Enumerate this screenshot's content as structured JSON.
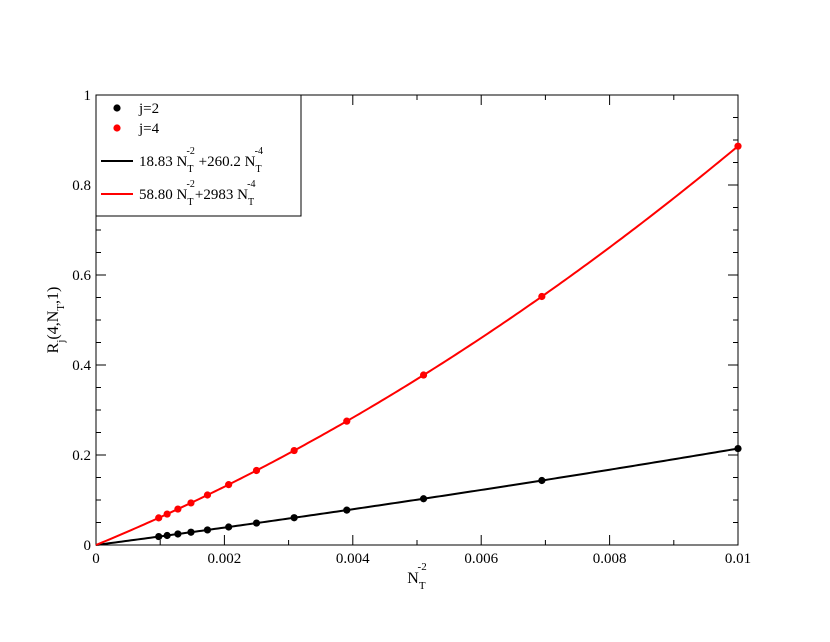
{
  "chart_data": {
    "type": "scatter",
    "x_axis": {
      "label_base": "N",
      "label_sub": "T",
      "label_sup": "-2",
      "range": [
        0,
        0.01
      ],
      "ticks": [
        0,
        0.002,
        0.004,
        0.006,
        0.008,
        0.01
      ],
      "tick_labels": [
        "0",
        "0.002",
        "0.004",
        "0.006",
        "0.008",
        "0.01"
      ]
    },
    "y_axis": {
      "label_parts": [
        "R",
        "j",
        "(4,N",
        "T",
        ",1)"
      ],
      "range": [
        0,
        1
      ],
      "ticks": [
        0,
        0.2,
        0.4,
        0.6,
        0.8,
        1
      ],
      "tick_labels": [
        "0",
        "0.2",
        "0.4",
        "0.6",
        "0.8",
        "1"
      ]
    },
    "grid": false,
    "legend_position": "top-left",
    "series": [
      {
        "name": "j=2",
        "kind": "points",
        "color": "#000000",
        "x": [
          0.0009765625,
          0.0011080332,
          0.0012755102,
          0.0014792899,
          0.0017361111,
          0.0020661157,
          0.0025,
          0.0030864198,
          0.00390625,
          0.0051020408,
          0.0069444444,
          0.01
        ],
        "y": [
          0.0187,
          0.0211,
          0.0245,
          0.0284,
          0.0335,
          0.04,
          0.0487,
          0.0606,
          0.0775,
          0.1028,
          0.1433,
          0.2143
        ]
      },
      {
        "name": "j=4",
        "kind": "points",
        "color": "#ff0000",
        "x": [
          0.0009765625,
          0.0011080332,
          0.0012755102,
          0.0014792899,
          0.0017361111,
          0.0020661157,
          0.0025,
          0.0030864198,
          0.00390625,
          0.0051020408,
          0.0069444444,
          0.01
        ],
        "y": [
          0.0603,
          0.0688,
          0.0799,
          0.0935,
          0.1111,
          0.1342,
          0.1656,
          0.2099,
          0.2752,
          0.3777,
          0.5522,
          0.8863
        ]
      },
      {
        "name_parts": [
          "18.83 N",
          "T",
          "-2",
          " +260.2 N",
          "T",
          "-4"
        ],
        "kind": "fit",
        "color": "#000000",
        "a": 18.83,
        "b": 260.2
      },
      {
        "name_parts": [
          "58.80 N",
          "T",
          "-2",
          "+2983 N",
          "T",
          "-4"
        ],
        "kind": "fit",
        "color": "#ff0000",
        "a": 58.8,
        "b": 2983
      }
    ]
  }
}
